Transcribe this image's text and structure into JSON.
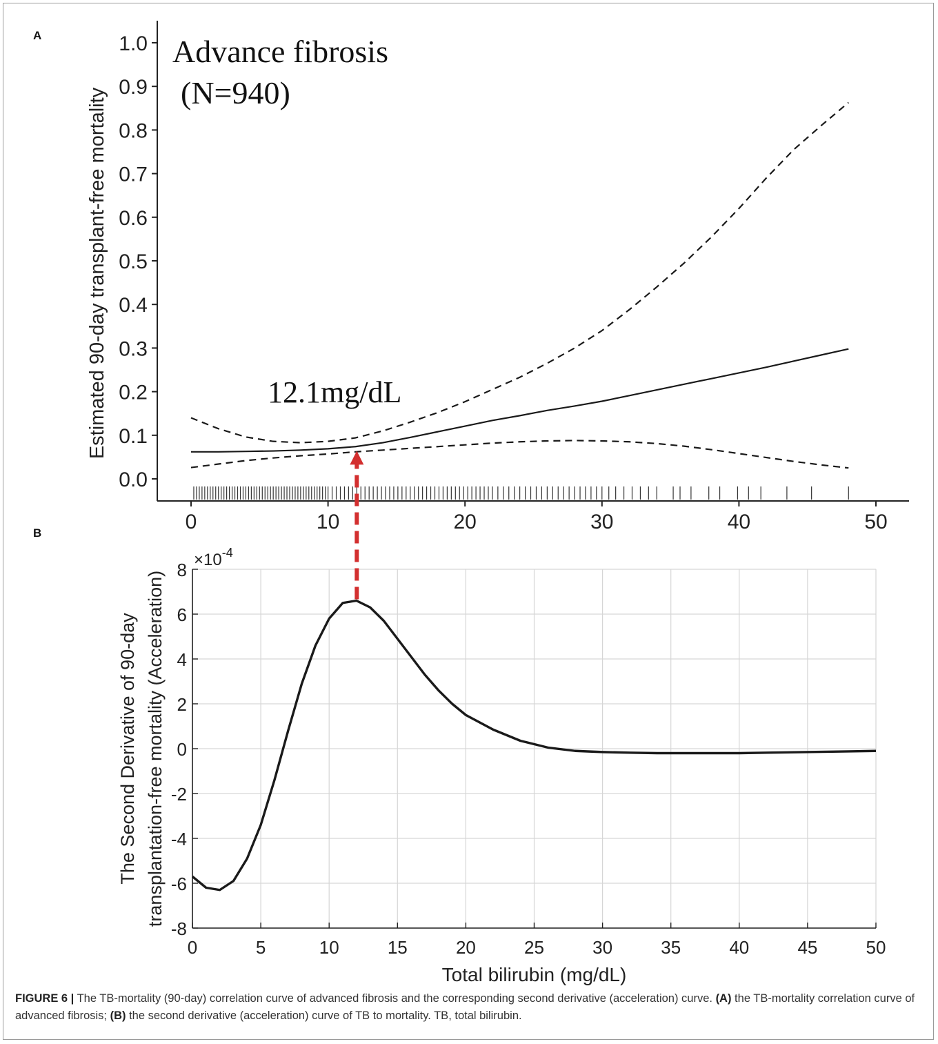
{
  "chart_data": [
    {
      "panel": "A",
      "type": "line",
      "title": "Advance fibrosis",
      "subtitle": "(N=940)",
      "xlabel": "",
      "ylabel": "Estimated 90-day transplant-free mortality",
      "xlim": [
        0,
        50
      ],
      "ylim": [
        0.0,
        1.0
      ],
      "x_ticks": [
        "0",
        "10",
        "20",
        "30",
        "40",
        "50"
      ],
      "y_ticks": [
        "0.0",
        "0.1",
        "0.2",
        "0.3",
        "0.4",
        "0.5",
        "0.6",
        "0.7",
        "0.8",
        "0.9",
        "1.0"
      ],
      "grid": false,
      "annotation": {
        "text": "12.1mg/dL",
        "x": 12.1
      },
      "series": [
        {
          "style": "solid",
          "x": [
            0,
            2,
            4,
            6,
            8,
            10,
            12,
            14,
            16,
            18,
            20,
            22,
            24,
            26,
            28,
            30,
            32,
            34,
            36,
            38,
            40,
            42,
            44,
            46,
            48
          ],
          "y": [
            0.062,
            0.062,
            0.063,
            0.064,
            0.066,
            0.069,
            0.074,
            0.083,
            0.095,
            0.108,
            0.121,
            0.134,
            0.145,
            0.157,
            0.167,
            0.178,
            0.191,
            0.204,
            0.217,
            0.23,
            0.243,
            0.256,
            0.27,
            0.284,
            0.298
          ]
        },
        {
          "style": "dashed",
          "x": [
            0,
            2,
            4,
            6,
            8,
            10,
            12,
            14,
            16,
            18,
            20,
            22,
            24,
            26,
            28,
            30,
            32,
            34,
            36,
            38,
            40,
            42,
            44,
            46,
            48
          ],
          "y": [
            0.14,
            0.115,
            0.096,
            0.086,
            0.083,
            0.086,
            0.094,
            0.11,
            0.13,
            0.152,
            0.177,
            0.205,
            0.233,
            0.265,
            0.3,
            0.34,
            0.388,
            0.44,
            0.495,
            0.555,
            0.62,
            0.69,
            0.755,
            0.81,
            0.863
          ]
        },
        {
          "style": "dashed",
          "x": [
            0,
            2,
            4,
            6,
            8,
            10,
            12,
            14,
            16,
            18,
            20,
            22,
            24,
            26,
            28,
            30,
            32,
            34,
            36,
            38,
            40,
            42,
            44,
            46,
            48
          ],
          "y": [
            0.026,
            0.034,
            0.042,
            0.048,
            0.053,
            0.057,
            0.062,
            0.066,
            0.07,
            0.074,
            0.078,
            0.082,
            0.085,
            0.087,
            0.088,
            0.087,
            0.085,
            0.081,
            0.075,
            0.067,
            0.058,
            0.049,
            0.04,
            0.032,
            0.025
          ]
        }
      ],
      "rug": [
        0.2,
        0.4,
        0.6,
        0.8,
        1.0,
        1.2,
        1.4,
        1.6,
        1.8,
        2.0,
        2.2,
        2.4,
        2.6,
        2.8,
        3.0,
        3.2,
        3.4,
        3.6,
        3.8,
        4.0,
        4.2,
        4.4,
        4.6,
        4.8,
        5.0,
        5.2,
        5.4,
        5.6,
        5.8,
        6.0,
        6.2,
        6.4,
        6.6,
        6.8,
        7.0,
        7.2,
        7.4,
        7.6,
        7.8,
        8.0,
        8.2,
        8.4,
        8.6,
        8.8,
        9.0,
        9.2,
        9.4,
        9.6,
        9.8,
        10.0,
        10.3,
        10.6,
        10.9,
        11.2,
        11.5,
        11.8,
        12.1,
        12.4,
        12.7,
        13.0,
        13.3,
        13.6,
        13.9,
        14.2,
        14.5,
        14.8,
        15.1,
        15.4,
        15.7,
        16.0,
        16.3,
        16.6,
        16.9,
        17.2,
        17.5,
        17.8,
        18.1,
        18.4,
        18.7,
        19.0,
        19.3,
        19.6,
        19.9,
        20.2,
        20.5,
        20.8,
        21.1,
        21.4,
        21.7,
        22.0,
        22.4,
        22.8,
        23.2,
        23.6,
        24.0,
        24.4,
        24.8,
        25.2,
        25.6,
        26.0,
        26.4,
        26.8,
        27.2,
        27.6,
        28.0,
        28.4,
        28.8,
        29.2,
        29.6,
        30.0,
        30.5,
        31.0,
        31.6,
        32.2,
        32.8,
        33.4,
        34.0,
        35.2,
        35.7,
        36.5,
        37.8,
        38.6,
        39.9,
        40.7,
        41.6,
        43.5,
        45.3,
        48.0
      ]
    },
    {
      "panel": "B",
      "type": "line",
      "xlabel": "Total bilirubin (mg/dL)",
      "ylabel": "The Second Derivative of 90-day transplantation-free mortality (Acceleration)",
      "y_multiplier": "×10-4",
      "xlim": [
        0,
        50
      ],
      "ylim": [
        -8,
        8
      ],
      "x_ticks": [
        "0",
        "5",
        "10",
        "15",
        "20",
        "25",
        "30",
        "35",
        "40",
        "45",
        "50"
      ],
      "y_ticks": [
        "-8",
        "-6",
        "-4",
        "-2",
        "0",
        "2",
        "4",
        "6",
        "8"
      ],
      "grid": true,
      "series": [
        {
          "style": "solid",
          "x": [
            0,
            1,
            2,
            3,
            4,
            5,
            6,
            7,
            8,
            9,
            10,
            11,
            12,
            13,
            14,
            15,
            16,
            17,
            18,
            19,
            20,
            22,
            24,
            26,
            28,
            30,
            32,
            34,
            36,
            38,
            40,
            42,
            44,
            46,
            48,
            50
          ],
          "y": [
            -5.7,
            -6.2,
            -6.3,
            -5.9,
            -4.9,
            -3.4,
            -1.4,
            0.8,
            2.9,
            4.6,
            5.8,
            6.5,
            6.6,
            6.3,
            5.7,
            4.9,
            4.1,
            3.3,
            2.6,
            2.0,
            1.5,
            0.85,
            0.35,
            0.05,
            -0.1,
            -0.15,
            -0.18,
            -0.2,
            -0.2,
            -0.2,
            -0.2,
            -0.18,
            -0.16,
            -0.14,
            -0.12,
            -0.1
          ]
        }
      ]
    }
  ],
  "panel_labels": {
    "a": "A",
    "b": "B"
  },
  "caption": {
    "figure": "FIGURE 6 |",
    "text1": " The TB-mortality (90-day) correlation curve of advanced fibrosis and the corresponding second derivative (acceleration) curve. ",
    "part_a": "(A)",
    "text2": " the TB-mortality correlation curve of advanced fibrosis; ",
    "part_b": "(B)",
    "text3": " the second derivative (acceleration) curve of TB to mortality. TB, total bilirubin."
  },
  "colors": {
    "line": "#1a1a1a",
    "arrow": "#d32f2f",
    "grid": "#d6d6d6"
  }
}
